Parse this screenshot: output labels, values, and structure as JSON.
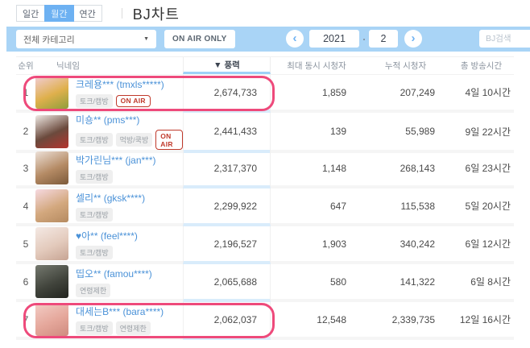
{
  "title": "BJ차트",
  "tabs": [
    {
      "id": "daily",
      "label": "일간",
      "active": false
    },
    {
      "id": "monthly",
      "label": "월간",
      "active": true
    },
    {
      "id": "yearly",
      "label": "연간",
      "active": false
    }
  ],
  "filter": {
    "category": "전체 카테고리",
    "caret": "▼",
    "on_air_only_label": "ON AIR ONLY",
    "prev_label": "‹",
    "next_label": "›",
    "year": "2021",
    "month": "2",
    "search_placeholder": "BJ검색"
  },
  "table": {
    "headers": {
      "rank": "순위",
      "nickname": "닉네임",
      "power": "▼ 풍력",
      "max_viewers": "최대 동시 시청자",
      "cumulative_viewers": "누적 시청자",
      "broadcast_time": "총 방송시간"
    },
    "on_air_label": "ON AIR",
    "rows": [
      {
        "rank": "1",
        "name": "크레용*** (tmxls*****)",
        "tags": [
          "토크/캠방"
        ],
        "on_air": true,
        "power": "2,674,733",
        "max_viewers": "1,859",
        "cumulative_viewers": "207,249",
        "broadcast_time": "4일 10시간",
        "highlighted": true,
        "avatar_colors": [
          "#f2cdd9",
          "#dfb04c",
          "#8f9e3b"
        ]
      },
      {
        "rank": "2",
        "name": "미숑** (pms***)",
        "tags": [
          "토크/캠방",
          "먹방/쿡방"
        ],
        "on_air": true,
        "power": "2,441,433",
        "max_viewers": "139",
        "cumulative_viewers": "55,989",
        "broadcast_time": "9일 22시간",
        "highlighted": false,
        "avatar_colors": [
          "#efe9e4",
          "#6b4a3d",
          "#b5342e"
        ]
      },
      {
        "rank": "3",
        "name": "박가린님*** (jan***)",
        "tags": [
          "토크/캠방"
        ],
        "on_air": false,
        "power": "2,317,370",
        "max_viewers": "1,148",
        "cumulative_viewers": "268,143",
        "broadcast_time": "6일 23시간",
        "highlighted": false,
        "avatar_colors": [
          "#ece0d7",
          "#b48a64",
          "#7c5a3a"
        ]
      },
      {
        "rank": "4",
        "name": "셀리** (gksk****)",
        "tags": [
          "토크/캠방"
        ],
        "on_air": false,
        "power": "2,299,922",
        "max_viewers": "647",
        "cumulative_viewers": "115,538",
        "broadcast_time": "5일 20시간",
        "highlighted": false,
        "avatar_colors": [
          "#f6d9e1",
          "#d3a87e",
          "#b58a60"
        ]
      },
      {
        "rank": "5",
        "name": "♥아** (feel****)",
        "tags": [
          "토크/캠방"
        ],
        "on_air": false,
        "power": "2,196,527",
        "max_viewers": "1,903",
        "cumulative_viewers": "340,242",
        "broadcast_time": "6일 12시간",
        "highlighted": false,
        "avatar_colors": [
          "#f4e9e4",
          "#e3cabc",
          "#c7a493"
        ]
      },
      {
        "rank": "6",
        "name": "띱오** (famou****)",
        "tags": [
          "연령제한"
        ],
        "on_air": false,
        "power": "2,065,688",
        "max_viewers": "580",
        "cumulative_viewers": "141,322",
        "broadcast_time": "6일 8시간",
        "highlighted": false,
        "avatar_colors": [
          "#75796f",
          "#41443c",
          "#22241f"
        ]
      },
      {
        "rank": "7",
        "name": "대세는B*** (bara****)",
        "tags": [
          "토크/캠방",
          "연령제한"
        ],
        "on_air": false,
        "power": "2,062,037",
        "max_viewers": "12,548",
        "cumulative_viewers": "2,339,735",
        "broadcast_time": "12일 16시간",
        "highlighted": true,
        "avatar_colors": [
          "#f3cdc6",
          "#e5a79b",
          "#cf8b7f"
        ]
      }
    ]
  },
  "colors": {
    "accent_blue": "#6db1f2",
    "filter_bar": "#a9d4f6",
    "sort_underline": "#9ed1f7",
    "highlight_pink": "#ee4a7b",
    "name_blue": "#4b92d8",
    "on_air_red": "#c0392b"
  }
}
